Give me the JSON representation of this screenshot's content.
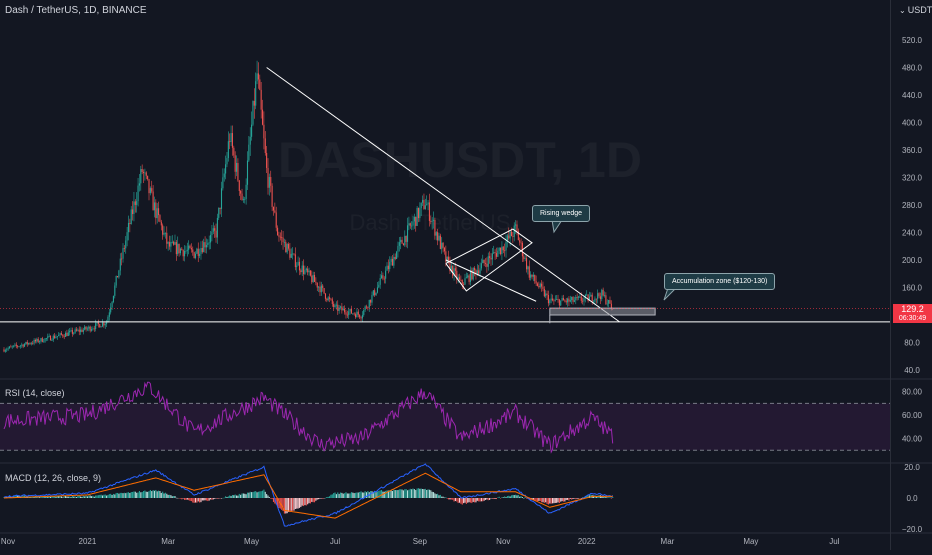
{
  "symbol": {
    "title": "Dash / TetherUS, 1D, BINANCE",
    "ticker": "DASHUSDT, 1D",
    "watermark_sub": "Dash / TetherUS"
  },
  "price_scale": {
    "currency": "USDT",
    "dropdown_icon": "chevron-down-icon",
    "ticks": [
      "520.0",
      "480.0",
      "440.0",
      "400.0",
      "360.0",
      "320.0",
      "280.0",
      "240.0",
      "200.0",
      "160.0",
      "80.0",
      "40.0"
    ],
    "last_price": "129.2",
    "countdown": "06:30:49"
  },
  "time_axis": {
    "labels": [
      "Nov",
      "2021",
      "Mar",
      "May",
      "Jul",
      "Sep",
      "Nov",
      "2022",
      "Mar",
      "May",
      "Jul"
    ]
  },
  "annotations": {
    "rising_wedge": "Rising wedge",
    "accumulation_zone": "Accumulation zone ($120-130)"
  },
  "rsi": {
    "label": "RSI (14, close)",
    "ticks": [
      "80.00",
      "60.00",
      "40.00"
    ]
  },
  "macd": {
    "label": "MACD (12, 26, close, 9)",
    "ticks": [
      "20.0",
      "0.0",
      "−20.0"
    ]
  },
  "colors": {
    "background": "#131722",
    "up": "#26a69a",
    "down": "#ef5350",
    "rsi_line": "#9c27b0",
    "macd_line": "#2962ff",
    "signal_line": "#ff6d00",
    "last_price": "#f23645"
  },
  "chart_data": [
    {
      "type": "candlestick",
      "title": "Dash / TetherUS, 1D, BINANCE",
      "ylim": [
        20,
        550
      ],
      "x_range": [
        "2020-11-01",
        "2022-07-31"
      ],
      "series": [
        {
          "name": "price (approx. close path)",
          "x": [
            "2020-11-01",
            "2020-12-01",
            "2021-01-01",
            "2021-01-15",
            "2021-02-10",
            "2021-02-20",
            "2021-03-01",
            "2021-03-20",
            "2021-04-05",
            "2021-04-15",
            "2021-04-25",
            "2021-05-05",
            "2021-05-12",
            "2021-05-20",
            "2021-06-01",
            "2021-06-20",
            "2021-07-01",
            "2021-07-20",
            "2021-08-01",
            "2021-08-20",
            "2021-09-05",
            "2021-09-20",
            "2021-10-01",
            "2021-10-15",
            "2021-11-01",
            "2021-11-10",
            "2021-11-20",
            "2021-12-05",
            "2021-12-20",
            "2022-01-05",
            "2022-01-12",
            "2022-01-20"
          ],
          "values": [
            70,
            85,
            100,
            110,
            330,
            270,
            220,
            210,
            240,
            380,
            280,
            470,
            330,
            240,
            200,
            160,
            130,
            120,
            160,
            230,
            285,
            200,
            165,
            190,
            220,
            245,
            180,
            140,
            140,
            145,
            150,
            129.2
          ]
        }
      ],
      "horizontal_line": 110,
      "accumulation_zone": [
        120,
        130
      ],
      "trendline": {
        "from": [
          "2021-05-12",
          480
        ],
        "to": [
          "2022-01-25",
          110
        ]
      }
    },
    {
      "type": "line",
      "title": "RSI (14, close)",
      "ylim": [
        20,
        90
      ],
      "bands": [
        30,
        70
      ],
      "x": [
        "2020-11-01",
        "2021-01-01",
        "2021-02-15",
        "2021-03-20",
        "2021-05-10",
        "2021-06-20",
        "2021-07-20",
        "2021-09-05",
        "2021-10-01",
        "2021-11-10",
        "2021-12-05",
        "2022-01-05",
        "2022-01-20"
      ],
      "series": [
        {
          "name": "RSI",
          "values": [
            55,
            60,
            85,
            45,
            75,
            35,
            40,
            80,
            40,
            62,
            34,
            58,
            42
          ]
        }
      ]
    },
    {
      "type": "line",
      "title": "MACD (12, 26, close, 9)",
      "ylim": [
        -22,
        24
      ],
      "x": [
        "2020-11-01",
        "2021-01-01",
        "2021-02-20",
        "2021-03-20",
        "2021-05-10",
        "2021-05-25",
        "2021-07-01",
        "2021-09-05",
        "2021-10-01",
        "2021-11-10",
        "2021-12-05",
        "2022-01-05",
        "2022-01-20"
      ],
      "series": [
        {
          "name": "MACD",
          "values": [
            1,
            3,
            18,
            2,
            20,
            -18,
            -10,
            22,
            0,
            6,
            -10,
            3,
            1
          ]
        },
        {
          "name": "Signal",
          "values": [
            0,
            2,
            13,
            5,
            15,
            -8,
            -13,
            16,
            4,
            4,
            -6,
            1,
            1
          ]
        }
      ]
    }
  ]
}
